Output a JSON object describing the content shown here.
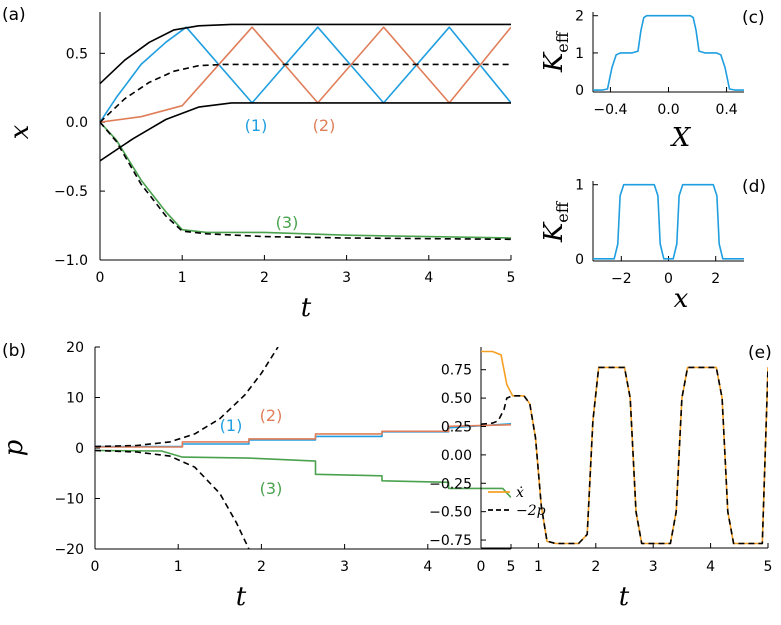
{
  "colors": {
    "blue": "#1f9ee0",
    "orange": "#e07e5a",
    "green": "#4aa24e",
    "gold": "#f5a023",
    "black": "#000000"
  },
  "chart_data": [
    {
      "panel": "(a)",
      "type": "line",
      "xlabel": "t",
      "ylabel": "x",
      "xlim": [
        0,
        5
      ],
      "ylim": [
        -1.0,
        0.8
      ],
      "xticks": [
        "0",
        "1",
        "2",
        "3",
        "4",
        "5"
      ],
      "yticks": [
        "−1.0",
        "−0.5",
        "0.0",
        "0.5"
      ],
      "annotations": [
        "(1)",
        "(2)",
        "(3)"
      ],
      "series": [
        {
          "name": "(1)",
          "color": "blue",
          "style": "solid",
          "x": [
            0,
            0.2,
            0.5,
            0.8,
            1.05,
            1.85,
            2.65,
            3.45,
            4.25,
            5.0
          ],
          "y": [
            0,
            0.18,
            0.42,
            0.58,
            0.69,
            0.14,
            0.69,
            0.14,
            0.69,
            0.14
          ]
        },
        {
          "name": "(2)",
          "color": "orange",
          "style": "solid",
          "x": [
            0,
            0.5,
            1.0,
            1.85,
            2.65,
            3.45,
            4.25,
            5.0
          ],
          "y": [
            0,
            0.04,
            0.12,
            0.69,
            0.14,
            0.69,
            0.14,
            0.69
          ]
        },
        {
          "name": "(3)",
          "color": "green",
          "style": "solid",
          "x": [
            0,
            0.2,
            0.5,
            0.8,
            1.0,
            1.3,
            2.0,
            3.0,
            4.0,
            5.0
          ],
          "y": [
            0,
            -0.13,
            -0.42,
            -0.65,
            -0.78,
            -0.8,
            -0.8,
            -0.82,
            -0.83,
            -0.84
          ]
        },
        {
          "name": "upper bound",
          "color": "black",
          "style": "solid",
          "x": [
            0,
            0.3,
            0.6,
            0.9,
            1.2,
            1.6,
            2.0,
            5.0
          ],
          "y": [
            0.28,
            0.45,
            0.58,
            0.67,
            0.7,
            0.71,
            0.71,
            0.71
          ]
        },
        {
          "name": "lower bound",
          "color": "black",
          "style": "solid",
          "x": [
            0,
            0.4,
            0.8,
            1.2,
            1.6,
            2.0,
            5.0
          ],
          "y": [
            -0.28,
            -0.12,
            0.02,
            0.11,
            0.14,
            0.14,
            0.14
          ]
        },
        {
          "name": "middle",
          "color": "black",
          "style": "dashed",
          "x": [
            0,
            0.3,
            0.6,
            0.9,
            1.2,
            1.5,
            2.0,
            5.0
          ],
          "y": [
            0,
            0.17,
            0.29,
            0.37,
            0.41,
            0.42,
            0.42,
            0.42
          ]
        },
        {
          "name": "lower dashed",
          "color": "black",
          "style": "dashed",
          "x": [
            0,
            0.2,
            0.5,
            0.8,
            1.0,
            1.3,
            2.0,
            3.0,
            5.0
          ],
          "y": [
            0,
            -0.14,
            -0.45,
            -0.68,
            -0.79,
            -0.81,
            -0.83,
            -0.84,
            -0.85
          ]
        }
      ]
    },
    {
      "panel": "(b)",
      "type": "line",
      "xlabel": "t",
      "ylabel": "p",
      "xlim": [
        0,
        5
      ],
      "ylim": [
        -20,
        20
      ],
      "xticks": [
        "0",
        "1",
        "2",
        "3",
        "4",
        "5"
      ],
      "yticks": [
        "−20",
        "−10",
        "0",
        "10",
        "20"
      ],
      "annotations": [
        "(1)",
        "(2)",
        "(3)"
      ],
      "series": [
        {
          "name": "(1)",
          "color": "blue",
          "style": "solid",
          "x": [
            0,
            1.05,
            1.05,
            1.85,
            1.85,
            2.65,
            2.65,
            3.45,
            3.45,
            4.25,
            4.25,
            5.0
          ],
          "y": [
            0.3,
            0.3,
            0.8,
            0.8,
            1.6,
            1.6,
            2.3,
            2.3,
            3.2,
            3.2,
            4.0,
            4.8
          ]
        },
        {
          "name": "(2)",
          "color": "orange",
          "style": "solid",
          "x": [
            0,
            1.05,
            1.05,
            1.85,
            1.85,
            2.65,
            2.65,
            3.45,
            3.45,
            4.25,
            4.25,
            5.0
          ],
          "y": [
            0.2,
            0.2,
            1.2,
            1.2,
            1.8,
            1.8,
            2.8,
            2.8,
            3.3,
            3.3,
            4.3,
            4.6
          ]
        },
        {
          "name": "(3)",
          "color": "green",
          "style": "solid",
          "x": [
            0,
            0.8,
            1.05,
            1.85,
            2.65,
            2.65,
            3.45,
            3.45,
            4.25,
            4.25,
            4.9,
            5.0
          ],
          "y": [
            -0.5,
            -0.6,
            -1.8,
            -2.0,
            -2.6,
            -5.2,
            -5.5,
            -6.5,
            -6.8,
            -8.0,
            -8.0,
            -9.8
          ]
        },
        {
          "name": "upper",
          "color": "black",
          "style": "dashed",
          "x": [
            0,
            0.5,
            0.9,
            1.2,
            1.5,
            1.8,
            2.0,
            2.2
          ],
          "y": [
            0.3,
            0.5,
            1.2,
            2.8,
            5.8,
            10.5,
            14.8,
            20
          ]
        },
        {
          "name": "lower",
          "color": "black",
          "style": "dashed",
          "x": [
            0,
            0.5,
            0.9,
            1.2,
            1.5,
            1.7,
            1.85
          ],
          "y": [
            -0.5,
            -0.8,
            -1.6,
            -3.8,
            -9.0,
            -14.8,
            -20
          ]
        }
      ]
    },
    {
      "panel": "(c)",
      "type": "line",
      "xlabel": "X",
      "ylabel": "K_eff",
      "xlim": [
        -0.52,
        0.52
      ],
      "ylim": [
        -0.05,
        2.1
      ],
      "xticks": [
        "−0.4",
        "0.0",
        "0.4"
      ],
      "yticks": [
        "0",
        "1",
        "2"
      ],
      "series": [
        {
          "name": "K_eff(X)",
          "color": "blue",
          "style": "solid",
          "x": [
            -0.52,
            -0.46,
            -0.42,
            -0.39,
            -0.36,
            -0.33,
            -0.25,
            -0.21,
            -0.19,
            -0.17,
            -0.15,
            0.15,
            0.17,
            0.19,
            0.21,
            0.25,
            0.33,
            0.36,
            0.39,
            0.42,
            0.46,
            0.52
          ],
          "y": [
            0,
            0,
            0.03,
            0.6,
            0.95,
            1,
            1,
            1.05,
            1.6,
            1.95,
            2,
            2,
            1.95,
            1.6,
            1.05,
            1,
            1,
            0.95,
            0.6,
            0.03,
            0,
            0
          ]
        }
      ]
    },
    {
      "panel": "(d)",
      "type": "line",
      "xlabel": "x",
      "ylabel": "K_eff",
      "xlim": [
        -3.2,
        3.2
      ],
      "ylim": [
        -0.03,
        1.05
      ],
      "xticks": [
        "−2",
        "0",
        "2"
      ],
      "yticks": [
        "0",
        "1"
      ],
      "series": [
        {
          "name": "K_eff(x)",
          "color": "blue",
          "style": "solid",
          "x": [
            -3.2,
            -2.3,
            -2.15,
            -2.05,
            -1.9,
            -0.6,
            -0.45,
            -0.35,
            -0.2,
            0.2,
            0.35,
            0.45,
            0.6,
            1.9,
            2.05,
            2.15,
            2.3,
            3.2
          ],
          "y": [
            0,
            0,
            0.2,
            0.85,
            1,
            1,
            0.85,
            0.2,
            0,
            0,
            0.2,
            0.85,
            1,
            1,
            0.85,
            0.2,
            0,
            0
          ]
        }
      ]
    },
    {
      "panel": "(e)",
      "type": "line",
      "xlabel": "t",
      "ylabel": "",
      "xlim": [
        0,
        5
      ],
      "ylim": [
        -0.82,
        0.95
      ],
      "xticks": [
        "0",
        "1",
        "2",
        "3",
        "4",
        "5"
      ],
      "yticks": [
        "0.75",
        "0.50",
        "0.25",
        "0.00",
        "−0.25",
        "−0.50",
        "−0.75"
      ],
      "legend": [
        "ẋ",
        "−2p"
      ],
      "series": [
        {
          "name": "ẋ",
          "color": "gold",
          "style": "solid",
          "x": [
            0,
            0.2,
            0.35,
            0.45,
            0.55,
            0.75,
            0.85,
            0.95,
            1.05,
            1.15,
            1.3,
            1.7,
            1.85,
            1.95,
            2.05,
            2.5,
            2.6,
            2.7,
            2.8,
            3.3,
            3.4,
            3.5,
            3.6,
            4.1,
            4.2,
            4.3,
            4.4,
            4.9,
            5.0
          ],
          "y": [
            0.91,
            0.91,
            0.88,
            0.62,
            0.52,
            0.52,
            0.45,
            0.15,
            -0.45,
            -0.76,
            -0.78,
            -0.78,
            -0.7,
            0.3,
            0.77,
            0.77,
            0.5,
            -0.5,
            -0.78,
            -0.78,
            -0.5,
            0.5,
            0.77,
            0.77,
            0.5,
            -0.5,
            -0.78,
            -0.78,
            0.77
          ]
        },
        {
          "name": "−2p",
          "color": "black",
          "style": "dashed",
          "x": [
            0,
            0.2,
            0.3,
            0.4,
            0.45,
            0.55,
            0.75,
            0.85,
            0.95,
            1.05,
            1.15,
            1.3,
            1.7,
            1.85,
            1.95,
            2.05,
            2.5,
            2.6,
            2.7,
            2.8,
            3.3,
            3.4,
            3.5,
            3.6,
            4.1,
            4.2,
            4.3,
            4.4,
            4.9,
            5.0
          ],
          "y": [
            0.27,
            0.28,
            0.3,
            0.4,
            0.5,
            0.52,
            0.52,
            0.45,
            0.15,
            -0.45,
            -0.76,
            -0.78,
            -0.78,
            -0.7,
            0.3,
            0.77,
            0.77,
            0.5,
            -0.5,
            -0.78,
            -0.78,
            -0.5,
            0.5,
            0.77,
            0.77,
            0.5,
            -0.5,
            -0.78,
            -0.78,
            0.77
          ]
        }
      ]
    }
  ]
}
